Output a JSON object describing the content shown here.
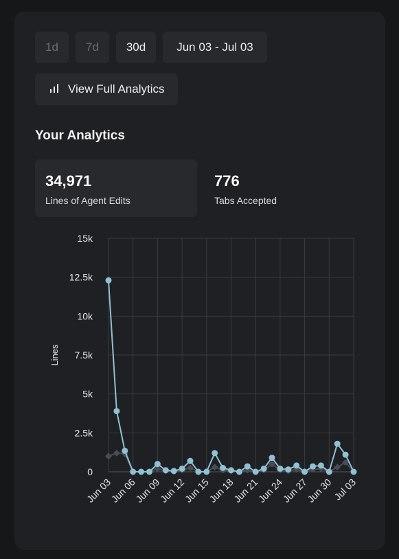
{
  "range_buttons": [
    {
      "label": "1d",
      "state": "disabled"
    },
    {
      "label": "7d",
      "state": "disabled"
    },
    {
      "label": "30d",
      "state": "enabled"
    },
    {
      "label": "Jun 03 - Jul 03",
      "state": "enabled"
    }
  ],
  "full_analytics": {
    "label": "View Full Analytics",
    "icon": "bar-chart-icon"
  },
  "section_title": "Your Analytics",
  "stats": [
    {
      "value": "34,971",
      "label": "Lines of Agent Edits"
    },
    {
      "value": "776",
      "label": "Tabs Accepted"
    }
  ],
  "colors": {
    "accent": "#8fc1d2",
    "secondary": "#4a4c54",
    "panel": "#1f2023",
    "background": "#161719"
  },
  "chart_data": {
    "type": "line",
    "ylabel": "Lines",
    "xlabel": "",
    "ylim": [
      0,
      15000
    ],
    "yticks": [
      "0",
      "2.5k",
      "5k",
      "7.5k",
      "10k",
      "12.5k",
      "15k"
    ],
    "xticks": [
      "Jun 03",
      "Jun 06",
      "Jun 09",
      "Jun 12",
      "Jun 15",
      "Jun 18",
      "Jun 21",
      "Jun 24",
      "Jun 27",
      "Jun 30",
      "Jul 03"
    ],
    "grid": true,
    "x": [
      "Jun 03",
      "Jun 04",
      "Jun 05",
      "Jun 06",
      "Jun 07",
      "Jun 08",
      "Jun 09",
      "Jun 10",
      "Jun 11",
      "Jun 12",
      "Jun 13",
      "Jun 14",
      "Jun 15",
      "Jun 16",
      "Jun 17",
      "Jun 18",
      "Jun 19",
      "Jun 20",
      "Jun 21",
      "Jun 22",
      "Jun 23",
      "Jun 24",
      "Jun 25",
      "Jun 26",
      "Jun 27",
      "Jun 28",
      "Jun 29",
      "Jun 30",
      "Jul 01",
      "Jul 02",
      "Jul 03"
    ],
    "series": [
      {
        "values": [
          12300,
          3900,
          1350,
          0,
          0,
          0,
          500,
          100,
          50,
          200,
          700,
          0,
          0,
          1200,
          250,
          100,
          0,
          350,
          0,
          200,
          900,
          200,
          150,
          400,
          0,
          350,
          400,
          0,
          1800,
          1100,
          0
        ]
      },
      {
        "values": [
          1000,
          1200,
          1150,
          0,
          0,
          0,
          200,
          50,
          30,
          100,
          250,
          0,
          0,
          300,
          100,
          50,
          0,
          100,
          0,
          100,
          500,
          100,
          50,
          150,
          0,
          150,
          200,
          0,
          300,
          600,
          0
        ]
      }
    ]
  }
}
